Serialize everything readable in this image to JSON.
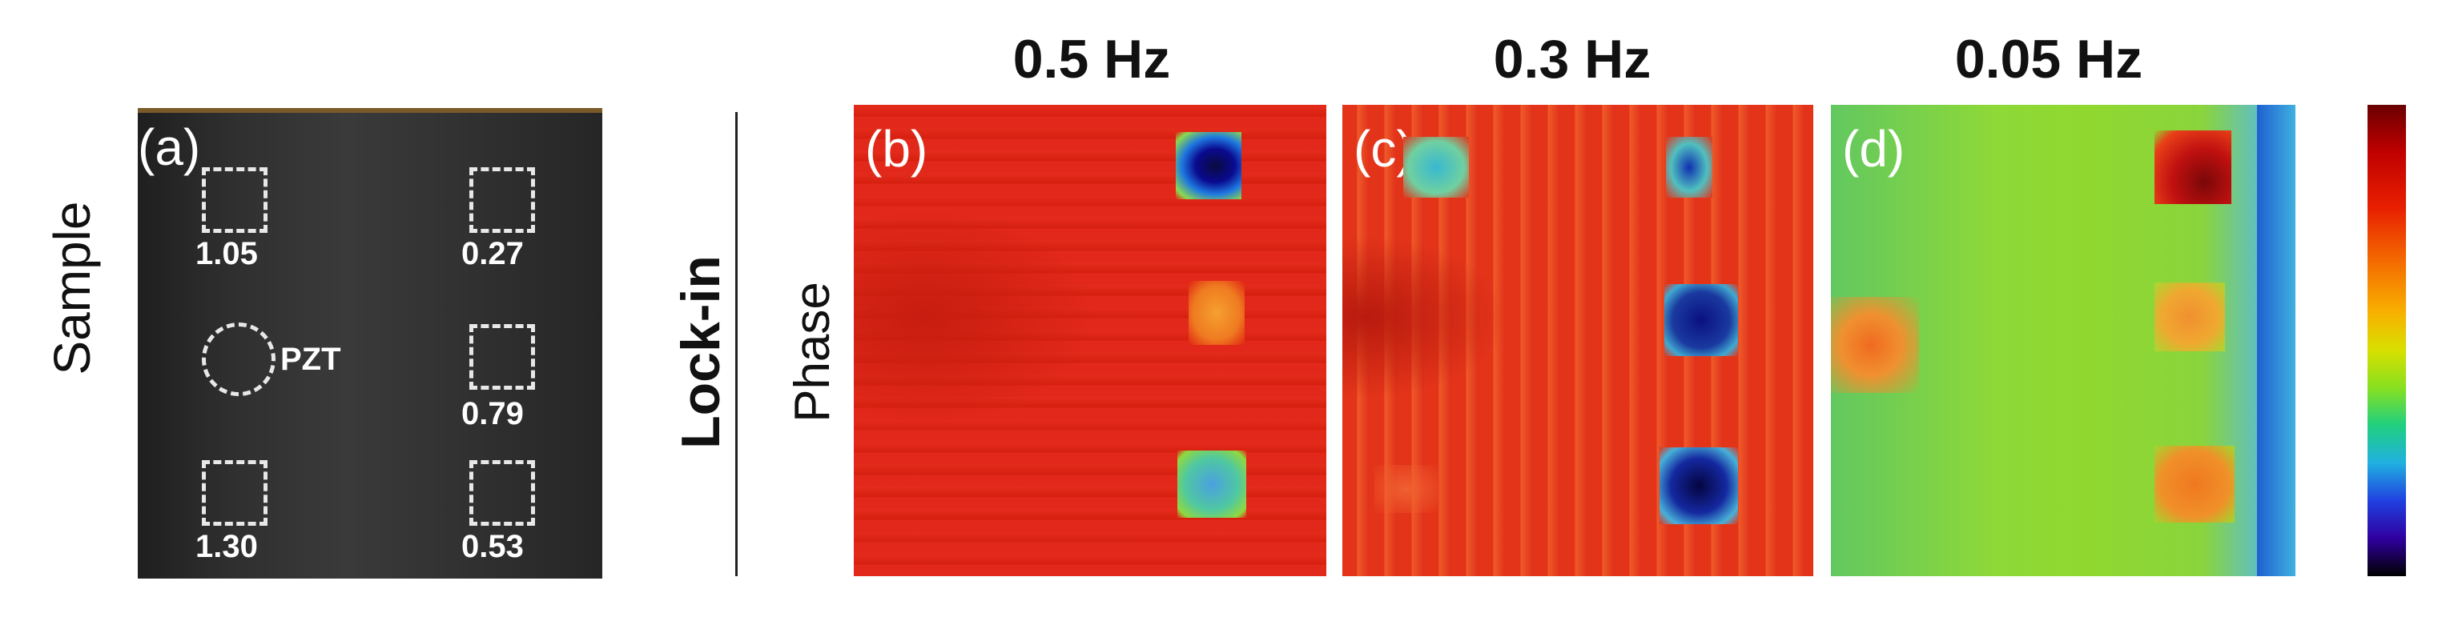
{
  "side_labels": {
    "sample": "Sample",
    "lockin": "Lock-in",
    "phase": "Phase"
  },
  "frequencies": [
    "0.5 Hz",
    "0.3 Hz",
    "0.05 Hz"
  ],
  "panel_labels": [
    "(a)",
    "(b)",
    "(c)",
    "(d)"
  ],
  "sample": {
    "defects": [
      "1.05",
      "0.27",
      "0.79",
      "1.30",
      "0.53"
    ],
    "pzt": "PZT"
  },
  "colors": {
    "sample_bg": "#2c2c2c",
    "lockin_red": "#e02414",
    "lowfreq_green": "#86d832"
  }
}
